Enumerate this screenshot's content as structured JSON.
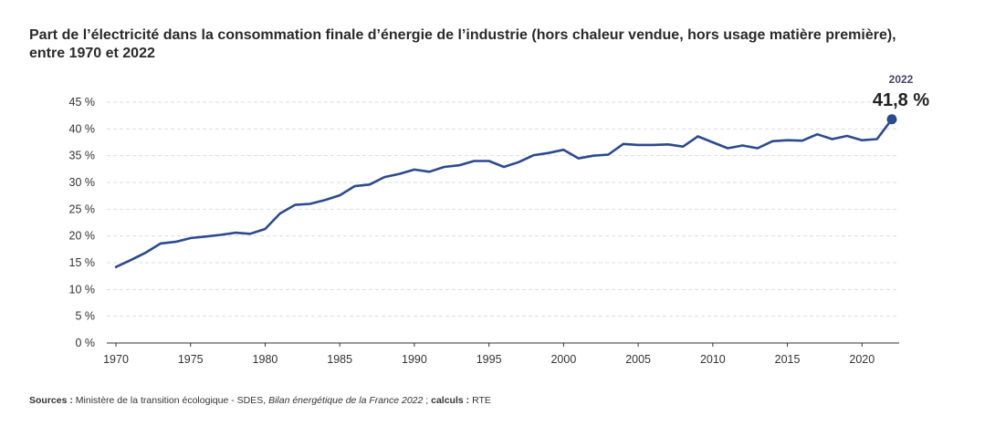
{
  "title_line1": "Part de l’électricité dans la consommation finale d’énergie de l’industrie (hors chaleur vendue, hors usage matière première),",
  "title_line2": "entre 1970 et 2022",
  "source": {
    "label_bold": "Sources :",
    "text1": " Ministère de la transition écologique - SDES, ",
    "text_italic": "Bilan énergétique de la France 2022",
    "text2": " ; ",
    "label_bold2": "calculs :",
    "text3": " RTE"
  },
  "chart_data": {
    "type": "line",
    "title": "Part de l’électricité dans la consommation finale d’énergie de l’industrie (hors chaleur vendue, hors usage matière première), entre 1970 et 2022",
    "xlabel": "",
    "ylabel": "",
    "xlim": [
      1970,
      2022
    ],
    "ylim": [
      0,
      45
    ],
    "grid": true,
    "x_ticks": [
      1970,
      1975,
      1980,
      1985,
      1990,
      1995,
      2000,
      2005,
      2010,
      2015,
      2020
    ],
    "y_ticks": [
      0,
      5,
      10,
      15,
      20,
      25,
      30,
      35,
      40,
      45
    ],
    "y_tick_labels": [
      "0 %",
      "5 %",
      "10 %",
      "15 %",
      "20 %",
      "25 %",
      "30 %",
      "35 %",
      "40 %",
      "45 %"
    ],
    "line_color": "#2b4a8f",
    "grid_color": "#dddddd",
    "x": [
      1970,
      1971,
      1972,
      1973,
      1974,
      1975,
      1976,
      1977,
      1978,
      1979,
      1980,
      1981,
      1982,
      1983,
      1984,
      1985,
      1986,
      1987,
      1988,
      1989,
      1990,
      1991,
      1992,
      1993,
      1994,
      1995,
      1996,
      1997,
      1998,
      1999,
      2000,
      2001,
      2002,
      2003,
      2004,
      2005,
      2006,
      2007,
      2008,
      2009,
      2010,
      2011,
      2012,
      2013,
      2014,
      2015,
      2016,
      2017,
      2018,
      2019,
      2020,
      2021,
      2022
    ],
    "y": [
      14.2,
      15.5,
      16.9,
      18.6,
      18.9,
      19.6,
      19.9,
      20.2,
      20.6,
      20.4,
      21.3,
      24.2,
      25.8,
      26.0,
      26.7,
      27.6,
      29.3,
      29.6,
      31.0,
      31.6,
      32.4,
      32.0,
      32.9,
      33.2,
      34.0,
      34.0,
      32.9,
      33.8,
      35.1,
      35.5,
      36.1,
      34.5,
      35.0,
      35.2,
      37.2,
      37.0,
      37.0,
      37.1,
      36.7,
      38.6,
      37.5,
      36.4,
      36.9,
      36.4,
      37.7,
      37.9,
      37.8,
      39.0,
      38.1,
      38.7,
      37.9,
      38.1,
      41.8
    ],
    "annotation": {
      "year_label": "2022",
      "value_label": "41,8 %",
      "x": 2022,
      "y": 41.8
    }
  }
}
